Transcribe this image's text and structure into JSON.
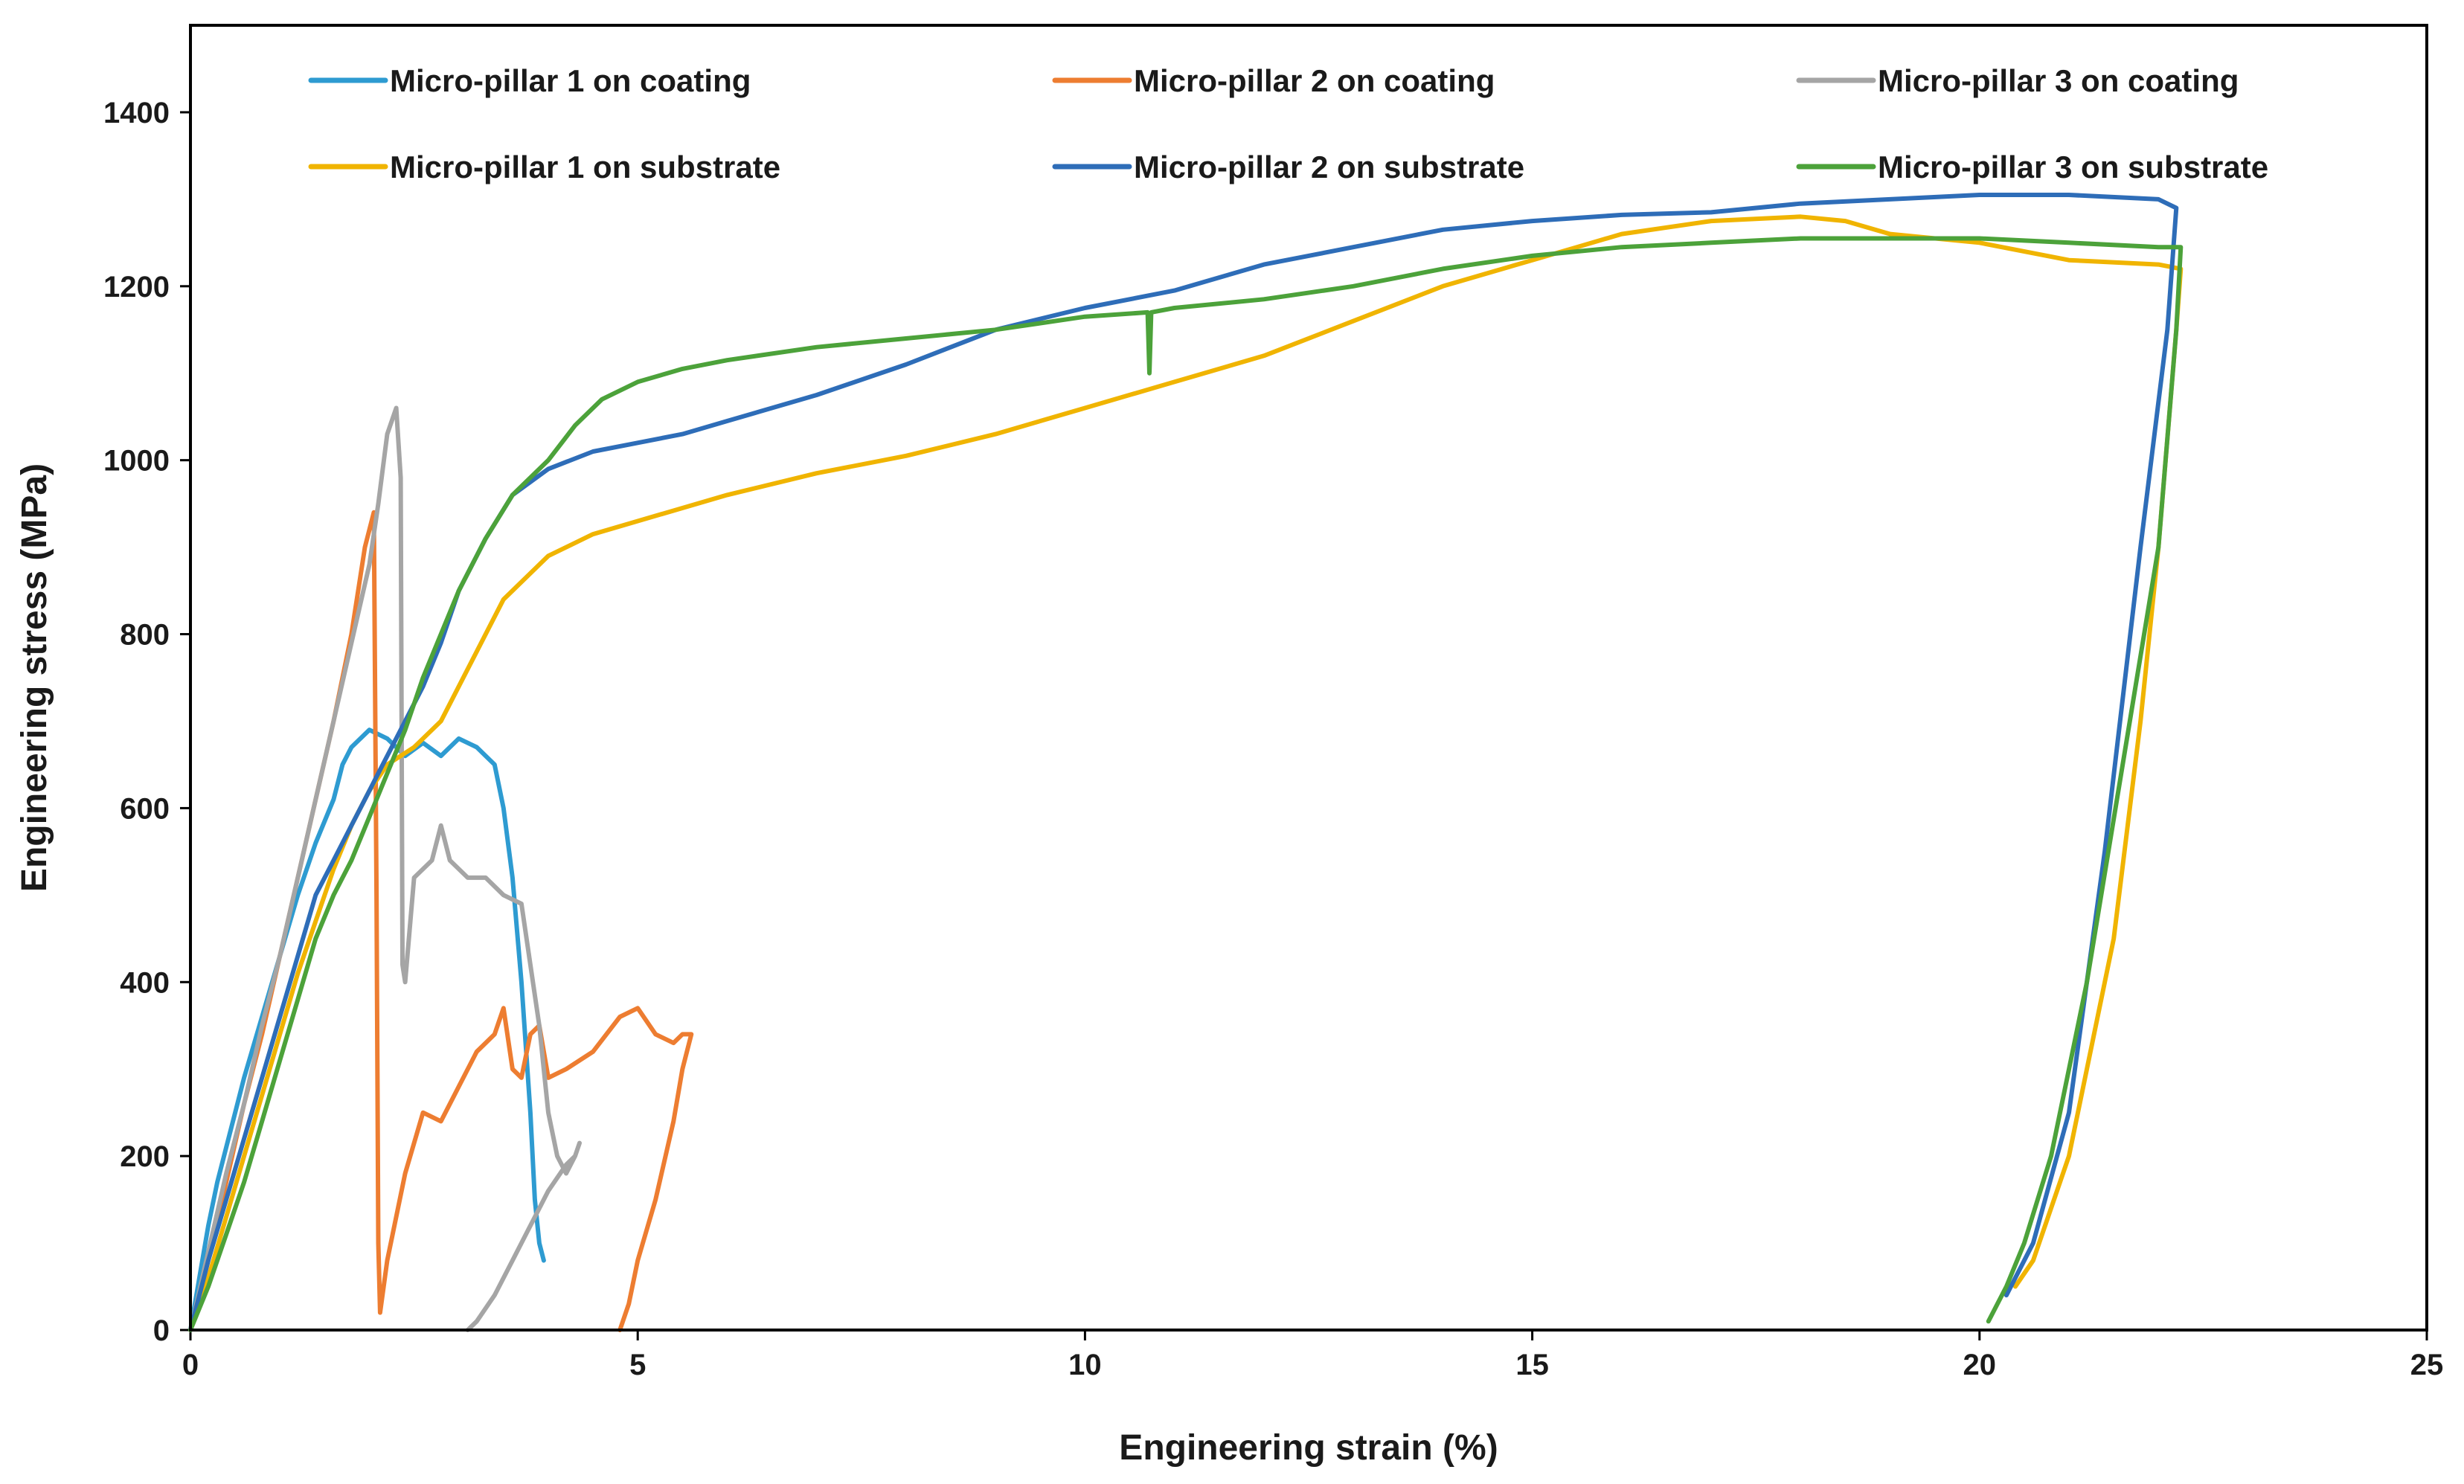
{
  "chart_data": {
    "type": "line",
    "title": "",
    "xlabel": "Engineering strain (%)",
    "ylabel": "Engineering stress (MPa)",
    "xlim": [
      0,
      25
    ],
    "ylim": [
      0,
      1500
    ],
    "x_ticks": [
      0,
      5,
      10,
      15,
      20,
      25
    ],
    "y_ticks": [
      0,
      200,
      400,
      600,
      800,
      1000,
      1200,
      1400
    ],
    "grid": false,
    "legend_position": "top",
    "series": [
      {
        "name": "Micro-pillar 1 on coating",
        "color": "#2e9bd1",
        "x": [
          0,
          0.1,
          0.2,
          0.3,
          0.4,
          0.5,
          0.6,
          0.8,
          1.0,
          1.2,
          1.4,
          1.6,
          1.7,
          1.8,
          2.0,
          2.2,
          2.4,
          2.6,
          2.8,
          3.0,
          3.2,
          3.4,
          3.5,
          3.6,
          3.7,
          3.8,
          3.85,
          3.9,
          3.95
        ],
        "y": [
          0,
          60,
          120,
          170,
          210,
          250,
          290,
          360,
          430,
          500,
          560,
          610,
          650,
          670,
          690,
          680,
          660,
          675,
          660,
          680,
          670,
          650,
          600,
          520,
          400,
          250,
          150,
          100,
          80
        ]
      },
      {
        "name": "Micro-pillar 2 on coating",
        "color": "#ed7d31",
        "x": [
          0,
          0.2,
          0.4,
          0.6,
          0.8,
          1.0,
          1.2,
          1.4,
          1.6,
          1.8,
          1.95,
          2.05,
          2.08,
          2.1,
          2.12,
          2.2,
          2.4,
          2.6,
          2.8,
          3.0,
          3.2,
          3.4,
          3.5,
          3.6,
          3.7,
          3.8,
          3.9,
          4.0,
          4.2,
          4.5,
          4.8,
          5.0,
          5.2,
          5.4,
          5.5,
          5.6,
          5.5,
          5.4,
          5.2,
          5.0,
          4.9,
          4.8
        ],
        "y": [
          0,
          80,
          170,
          260,
          340,
          430,
          520,
          610,
          700,
          800,
          900,
          940,
          500,
          100,
          20,
          80,
          180,
          250,
          240,
          280,
          320,
          340,
          370,
          300,
          290,
          340,
          350,
          290,
          300,
          320,
          360,
          370,
          340,
          330,
          340,
          340,
          300,
          240,
          150,
          80,
          30,
          0
        ]
      },
      {
        "name": "Micro-pillar 3 on coating",
        "color": "#a5a5a5",
        "x": [
          0,
          0.2,
          0.4,
          0.6,
          0.8,
          1.0,
          1.2,
          1.4,
          1.6,
          1.8,
          2.0,
          2.1,
          2.2,
          2.3,
          2.35,
          2.37,
          2.4,
          2.5,
          2.7,
          2.8,
          2.9,
          3.1,
          3.3,
          3.5,
          3.7,
          3.8,
          3.9,
          3.95,
          4.0,
          4.1,
          4.2,
          4.3,
          4.35,
          4.3,
          4.2,
          4.0,
          3.8,
          3.6,
          3.4,
          3.2,
          3.1
        ],
        "y": [
          0,
          90,
          180,
          260,
          350,
          430,
          520,
          610,
          700,
          790,
          880,
          950,
          1030,
          1060,
          980,
          420,
          400,
          520,
          540,
          580,
          540,
          520,
          520,
          500,
          490,
          420,
          350,
          300,
          250,
          200,
          180,
          200,
          215,
          200,
          190,
          160,
          120,
          80,
          40,
          10,
          0
        ]
      },
      {
        "name": "Micro-pillar 1 on substrate",
        "color": "#f0b400",
        "x": [
          0,
          0.2,
          0.4,
          0.6,
          0.8,
          1.0,
          1.2,
          1.4,
          1.6,
          1.8,
          2.0,
          2.2,
          2.5,
          2.8,
          3.0,
          3.2,
          3.5,
          4.0,
          4.5,
          5.0,
          6.0,
          7.0,
          8.0,
          9.0,
          10.0,
          11.0,
          12.0,
          13.0,
          14.0,
          15.0,
          15.5,
          16.0,
          17.0,
          18.0,
          18.5,
          19.0,
          20.0,
          21.0,
          22.0,
          22.25,
          22.2,
          22.0,
          21.8,
          21.5,
          21.0,
          20.6,
          20.4
        ],
        "y": [
          0,
          60,
          130,
          200,
          270,
          340,
          410,
          470,
          530,
          580,
          620,
          650,
          670,
          700,
          740,
          780,
          840,
          890,
          915,
          930,
          960,
          985,
          1005,
          1030,
          1060,
          1090,
          1120,
          1160,
          1200,
          1230,
          1245,
          1260,
          1275,
          1280,
          1275,
          1260,
          1250,
          1230,
          1225,
          1220,
          1150,
          900,
          700,
          450,
          200,
          80,
          50
        ]
      },
      {
        "name": "Micro-pillar 2 on substrate",
        "color": "#2e6db8",
        "x": [
          0,
          0.2,
          0.4,
          0.6,
          0.8,
          1.0,
          1.2,
          1.4,
          1.6,
          1.8,
          2.0,
          2.2,
          2.4,
          2.6,
          2.8,
          3.0,
          3.3,
          3.6,
          4.0,
          4.5,
          5.0,
          5.5,
          6.0,
          7.0,
          8.0,
          9.0,
          10.0,
          11.0,
          12.0,
          13.0,
          14.0,
          15.0,
          16.0,
          17.0,
          18.0,
          19.0,
          20.0,
          21.0,
          22.0,
          22.2,
          22.1,
          21.8,
          21.4,
          21.0,
          20.6,
          20.3
        ],
        "y": [
          0,
          80,
          150,
          220,
          290,
          360,
          430,
          500,
          540,
          580,
          620,
          660,
          700,
          740,
          790,
          850,
          910,
          960,
          990,
          1010,
          1020,
          1030,
          1045,
          1075,
          1110,
          1150,
          1175,
          1195,
          1225,
          1245,
          1265,
          1275,
          1282,
          1285,
          1295,
          1300,
          1305,
          1305,
          1300,
          1290,
          1150,
          900,
          550,
          250,
          100,
          40
        ]
      },
      {
        "name": "Micro-pillar 3 on substrate",
        "color": "#4ca23a",
        "x": [
          0,
          0.2,
          0.4,
          0.6,
          0.8,
          1.0,
          1.2,
          1.4,
          1.6,
          1.8,
          2.0,
          2.2,
          2.4,
          2.6,
          2.8,
          3.0,
          3.3,
          3.6,
          4.0,
          4.3,
          4.6,
          5.0,
          5.5,
          6.0,
          7.0,
          8.0,
          9.0,
          10.0,
          10.7,
          10.72,
          10.74,
          11.0,
          12.0,
          13.0,
          14.0,
          15.0,
          16.0,
          17.0,
          18.0,
          19.0,
          20.0,
          21.0,
          22.0,
          22.25,
          22.2,
          22.0,
          21.6,
          21.2,
          20.8,
          20.5,
          20.3,
          20.1
        ],
        "y": [
          0,
          50,
          110,
          170,
          240,
          310,
          380,
          450,
          500,
          540,
          590,
          640,
          690,
          750,
          800,
          850,
          910,
          960,
          1000,
          1040,
          1070,
          1090,
          1105,
          1115,
          1130,
          1140,
          1150,
          1165,
          1170,
          1100,
          1170,
          1175,
          1185,
          1200,
          1220,
          1235,
          1245,
          1250,
          1255,
          1255,
          1255,
          1250,
          1245,
          1245,
          1150,
          900,
          650,
          400,
          200,
          100,
          50,
          10
        ]
      }
    ]
  }
}
